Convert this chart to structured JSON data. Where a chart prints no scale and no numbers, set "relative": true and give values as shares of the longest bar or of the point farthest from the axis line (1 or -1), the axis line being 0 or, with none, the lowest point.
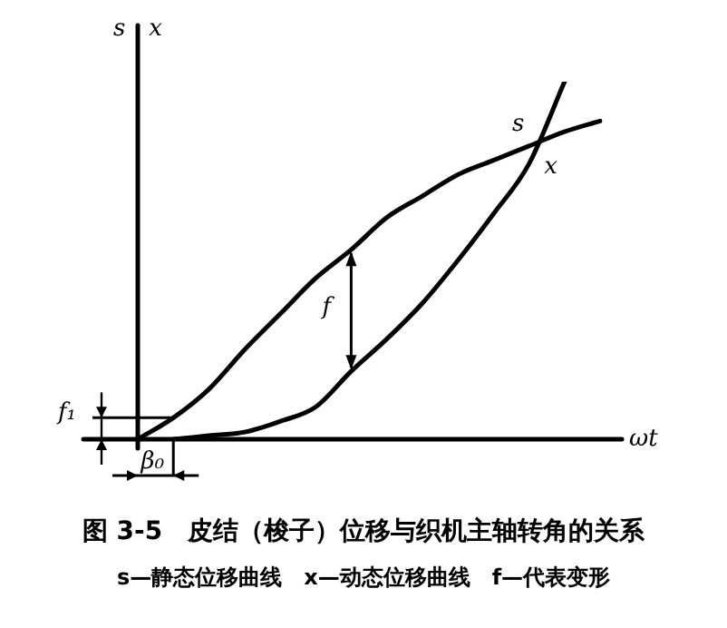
{
  "chart_data": {
    "type": "line",
    "relative": true,
    "title": "图 3-5　皮结（梭子）位移与织机主轴转角的关系",
    "subtitle": "s—静态位移曲线　x—动态位移曲线　f—代表变形",
    "xlabel": "ωt",
    "ylabel": "s　x",
    "categories": [
      null,
      null,
      null,
      null,
      null,
      null,
      null,
      null,
      null,
      null,
      null,
      null,
      null,
      null
    ],
    "series": [
      {
        "name": "s",
        "color": "#000000",
        "values": [
          0,
          0.06,
          0.14,
          0.25,
          0.35,
          0.45,
          0.53,
          0.62,
          0.68,
          0.74,
          0.78,
          0.82,
          0.86,
          0.89
        ]
      },
      {
        "name": "x",
        "color": "#000000",
        "values": [
          null,
          0,
          0.01,
          0.02,
          0.05,
          0.09,
          0.19,
          0.28,
          0.38,
          0.5,
          0.63,
          0.77,
          1,
          null
        ]
      }
    ],
    "annotations": [
      "f",
      "f₁",
      "β₀"
    ],
    "legend": false,
    "marker": "none",
    "line_style": "solid"
  }
}
